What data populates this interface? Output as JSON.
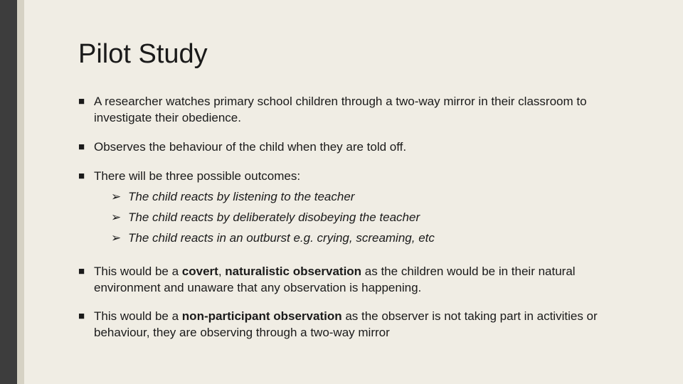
{
  "colors": {
    "background": "#f0ede4",
    "sidebar_dark": "#3d3d3d",
    "sidebar_light": "#d6d2c4",
    "text": "#1a1a1a"
  },
  "typography": {
    "title_fontsize": 38,
    "body_fontsize": 17,
    "font_family": "Arial"
  },
  "title": "Pilot Study",
  "bullets": [
    {
      "text": "A researcher watches primary school children through a two-way mirror in their classroom to investigate their obedience."
    },
    {
      "text": "Observes the behaviour of the child when they are told off."
    },
    {
      "text": "There will be three possible outcomes:",
      "subitems": [
        "The child reacts by listening to the teacher",
        "The child reacts by deliberately disobeying the teacher",
        "The child reacts in an outburst e.g. crying, screaming, etc"
      ]
    },
    {
      "html": "This would be a <span class=\"bold\">covert</span>, <span class=\"bold\">naturalistic observation</span> as the children would be in their natural environment and unaware that any observation is happening."
    },
    {
      "html": "This would be a <span class=\"bold\">non-participant observation</span> as the observer is not taking part in activities or behaviour, they are observing through a two-way mirror"
    }
  ],
  "markers": {
    "bullet": "■",
    "sub_bullet": "➢"
  }
}
